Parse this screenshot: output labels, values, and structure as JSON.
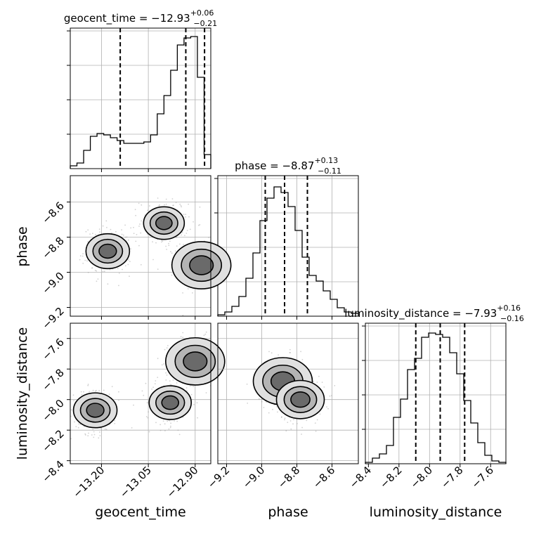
{
  "chart_data": {
    "type": "corner",
    "parameters": [
      "geocent_time",
      "phase",
      "luminosity_distance"
    ],
    "titles": [
      {
        "param": "geocent_time",
        "name": "geocent_time",
        "value": "−12.93",
        "plus": "+0.06",
        "minus": "−0.21"
      },
      {
        "param": "phase",
        "name": "phase",
        "value": "−8.87",
        "plus": "+0.13",
        "minus": "−0.11"
      },
      {
        "param": "luminosity_distance",
        "name": "luminosity_distance",
        "value": "−7.93",
        "plus": "+0.16",
        "minus": "−0.16"
      }
    ],
    "axes": {
      "geocent_time": {
        "range": [
          -13.3,
          -12.85
        ],
        "ticks": [
          -13.2,
          -13.05,
          -12.9
        ],
        "tick_labels": [
          "−13.20",
          "−13.05",
          "−12.90"
        ]
      },
      "phase": {
        "range": [
          -9.25,
          -8.45
        ],
        "ticks": [
          -9.2,
          -9.0,
          -8.8,
          -8.6
        ],
        "tick_labels": [
          "−9.2",
          "−9.0",
          "−8.8",
          "−8.6"
        ]
      },
      "luminosity_distance": {
        "range": [
          -8.42,
          -7.5
        ],
        "ticks": [
          -8.4,
          -8.2,
          -8.0,
          -7.8,
          -7.6
        ],
        "tick_labels": [
          "−8.4",
          "−8.2",
          "−8.0",
          "−7.8",
          "−7.6"
        ]
      }
    },
    "quantiles": {
      "geocent_time": [
        -13.14,
        -12.93,
        -12.87
      ],
      "phase": [
        -8.98,
        -8.87,
        -8.74
      ],
      "luminosity_distance": [
        -8.09,
        -7.93,
        -7.77
      ]
    },
    "histograms": {
      "geocent_time": {
        "edges_range": [
          -13.3,
          -12.85
        ],
        "counts": [
          0.02,
          0.04,
          0.13,
          0.23,
          0.25,
          0.24,
          0.22,
          0.2,
          0.18,
          0.18,
          0.18,
          0.19,
          0.24,
          0.39,
          0.52,
          0.7,
          0.88,
          0.93,
          0.94,
          0.65,
          0.1
        ]
      },
      "phase": {
        "edges_range": [
          -9.25,
          -8.45
        ],
        "counts": [
          0.01,
          0.03,
          0.07,
          0.14,
          0.27,
          0.45,
          0.68,
          0.84,
          0.92,
          0.88,
          0.78,
          0.61,
          0.42,
          0.29,
          0.25,
          0.18,
          0.12,
          0.06,
          0.03,
          0.02
        ]
      },
      "luminosity_distance": {
        "edges_range": [
          -8.42,
          -7.5
        ],
        "counts": [
          0.01,
          0.04,
          0.07,
          0.13,
          0.33,
          0.46,
          0.67,
          0.75,
          0.9,
          0.93,
          0.92,
          0.9,
          0.79,
          0.64,
          0.45,
          0.29,
          0.15,
          0.06,
          0.02,
          0.01
        ]
      }
    },
    "density_2d": [
      {
        "x": "geocent_time",
        "y": "phase",
        "modes": [
          {
            "x": -12.88,
            "y": -8.96,
            "w": 1.0
          },
          {
            "x": -13.18,
            "y": -8.88,
            "w": 0.45
          },
          {
            "x": -13.0,
            "y": -8.72,
            "w": 0.35
          }
        ]
      },
      {
        "x": "geocent_time",
        "y": "luminosity_distance",
        "modes": [
          {
            "x": -12.9,
            "y": -7.75,
            "w": 1.0
          },
          {
            "x": -13.22,
            "y": -8.07,
            "w": 0.45
          },
          {
            "x": -12.98,
            "y": -8.02,
            "w": 0.4
          }
        ]
      },
      {
        "x": "phase",
        "y": "luminosity_distance",
        "modes": [
          {
            "x": -8.88,
            "y": -7.88,
            "w": 1.0
          },
          {
            "x": -8.78,
            "y": -8.0,
            "w": 0.6
          }
        ]
      }
    ],
    "grid": true
  }
}
